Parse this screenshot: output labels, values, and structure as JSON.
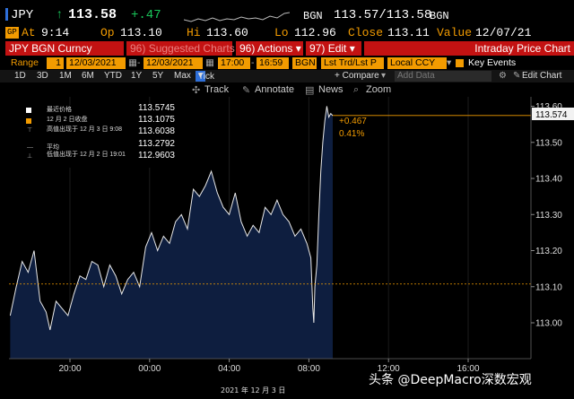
{
  "header": {
    "ticker": "JPY",
    "arrow": "↑",
    "last": "113.58",
    "change": "+.47",
    "source": "BGN",
    "bid_ask": "113.57/113.58",
    "source2": "BGN",
    "at_label": "At",
    "at_time": "9:14",
    "op_label": "Op",
    "op_value": "113.10",
    "hi_label": "Hi",
    "hi_value": "113.60",
    "lo_label": "Lo",
    "lo_value": "112.96",
    "close_label": "Close",
    "close_value": "113.11",
    "value_label": "Value",
    "value_date": "12/07/21"
  },
  "toolbar": {
    "security": "JPY BGN Curncy",
    "suggested": "Suggested Charts",
    "suggested_num": "96",
    "actions": "Actions",
    "actions_num": "96",
    "edit": "Edit",
    "edit_num": "97",
    "title": "Intraday Price Chart"
  },
  "range": {
    "label": "Range",
    "num": "1",
    "start_date": "12/03/2021",
    "end_date": "12/03/2021",
    "start_time": "17:00",
    "end_time": "16:59",
    "source": "BGN",
    "field": "Lst Trd/Lst P",
    "currency": "Local CCY",
    "key_events": "Key Events"
  },
  "periods": [
    "1D",
    "3D",
    "1M",
    "6M",
    "YTD",
    "1Y",
    "5Y",
    "Max",
    "Tick"
  ],
  "compare": "+ Compare",
  "add_data": "Add Data",
  "edit_chart": "Edit Chart",
  "tools": {
    "track": "Track",
    "annotate": "Annotate",
    "news": "News",
    "zoom": "Zoom"
  },
  "legend": {
    "items": [
      {
        "label": "最近价格",
        "value": "113.5745"
      },
      {
        "label": "12 月 2 日收盘",
        "value": "113.1075"
      },
      {
        "label": "高值出现于 12 月 3 日 9:08",
        "value": "113.6038"
      },
      {
        "label": "平均",
        "value": "113.2792"
      },
      {
        "label": "低值出现于 12 月 2 日 19:01",
        "value": "112.9603"
      }
    ]
  },
  "annotation": {
    "change": "+0.467",
    "pct": "0.41%",
    "last_tag": "113.574"
  },
  "watermark": "头条 @DeepMacro深数宏观",
  "date_label": "2021 年 12 月 3 日",
  "colors": {
    "amber": "#f29b00",
    "red": "#c31212",
    "fill": "#0e1e3f"
  },
  "chart_data": {
    "type": "area",
    "ylim": [
      112.95,
      113.63
    ],
    "yticks": [
      113.0,
      113.1,
      113.2,
      113.3,
      113.4,
      113.5,
      113.6
    ],
    "ytick_labels": [
      "113.00",
      "113.10",
      "113.20",
      "113.30",
      "113.40",
      "113.50",
      "113.60"
    ],
    "xticks": [
      "20:00",
      "00:00",
      "04:00",
      "08:00",
      "12:00",
      "16:00"
    ],
    "reference_line": 113.1075,
    "last_price_line": 113.5745,
    "x": [
      17,
      17.3,
      17.6,
      17.9,
      18.2,
      18.5,
      18.8,
      19.0,
      19.3,
      19.6,
      19.9,
      20.2,
      20.5,
      20.8,
      21.1,
      21.4,
      21.7,
      22.0,
      22.3,
      22.6,
      22.9,
      23.2,
      23.5,
      23.8,
      24.1,
      24.4,
      24.7,
      25.0,
      25.3,
      25.6,
      25.9,
      26.2,
      26.5,
      26.8,
      27.1,
      27.4,
      27.7,
      28.0,
      28.3,
      28.6,
      28.9,
      29.2,
      29.5,
      29.8,
      30.1,
      30.4,
      30.7,
      31.0,
      31.3,
      31.6,
      31.9,
      32.1,
      32.2,
      32.25,
      32.3,
      32.4,
      32.5,
      32.6,
      32.7,
      32.8,
      32.9,
      33.0,
      33.1,
      33.2
    ],
    "y": [
      113.02,
      113.1,
      113.17,
      113.14,
      113.2,
      113.06,
      113.03,
      112.98,
      113.06,
      113.04,
      113.02,
      113.08,
      113.13,
      113.12,
      113.17,
      113.16,
      113.1,
      113.16,
      113.13,
      113.08,
      113.12,
      113.14,
      113.1,
      113.21,
      113.25,
      113.2,
      113.24,
      113.22,
      113.28,
      113.3,
      113.26,
      113.37,
      113.35,
      113.38,
      113.42,
      113.36,
      113.32,
      113.3,
      113.36,
      113.28,
      113.24,
      113.27,
      113.25,
      113.32,
      113.3,
      113.34,
      113.3,
      113.28,
      113.24,
      113.26,
      113.22,
      113.18,
      113.04,
      113.0,
      113.1,
      113.16,
      113.3,
      113.42,
      113.5,
      113.56,
      113.6,
      113.57,
      113.58,
      113.574
    ]
  }
}
